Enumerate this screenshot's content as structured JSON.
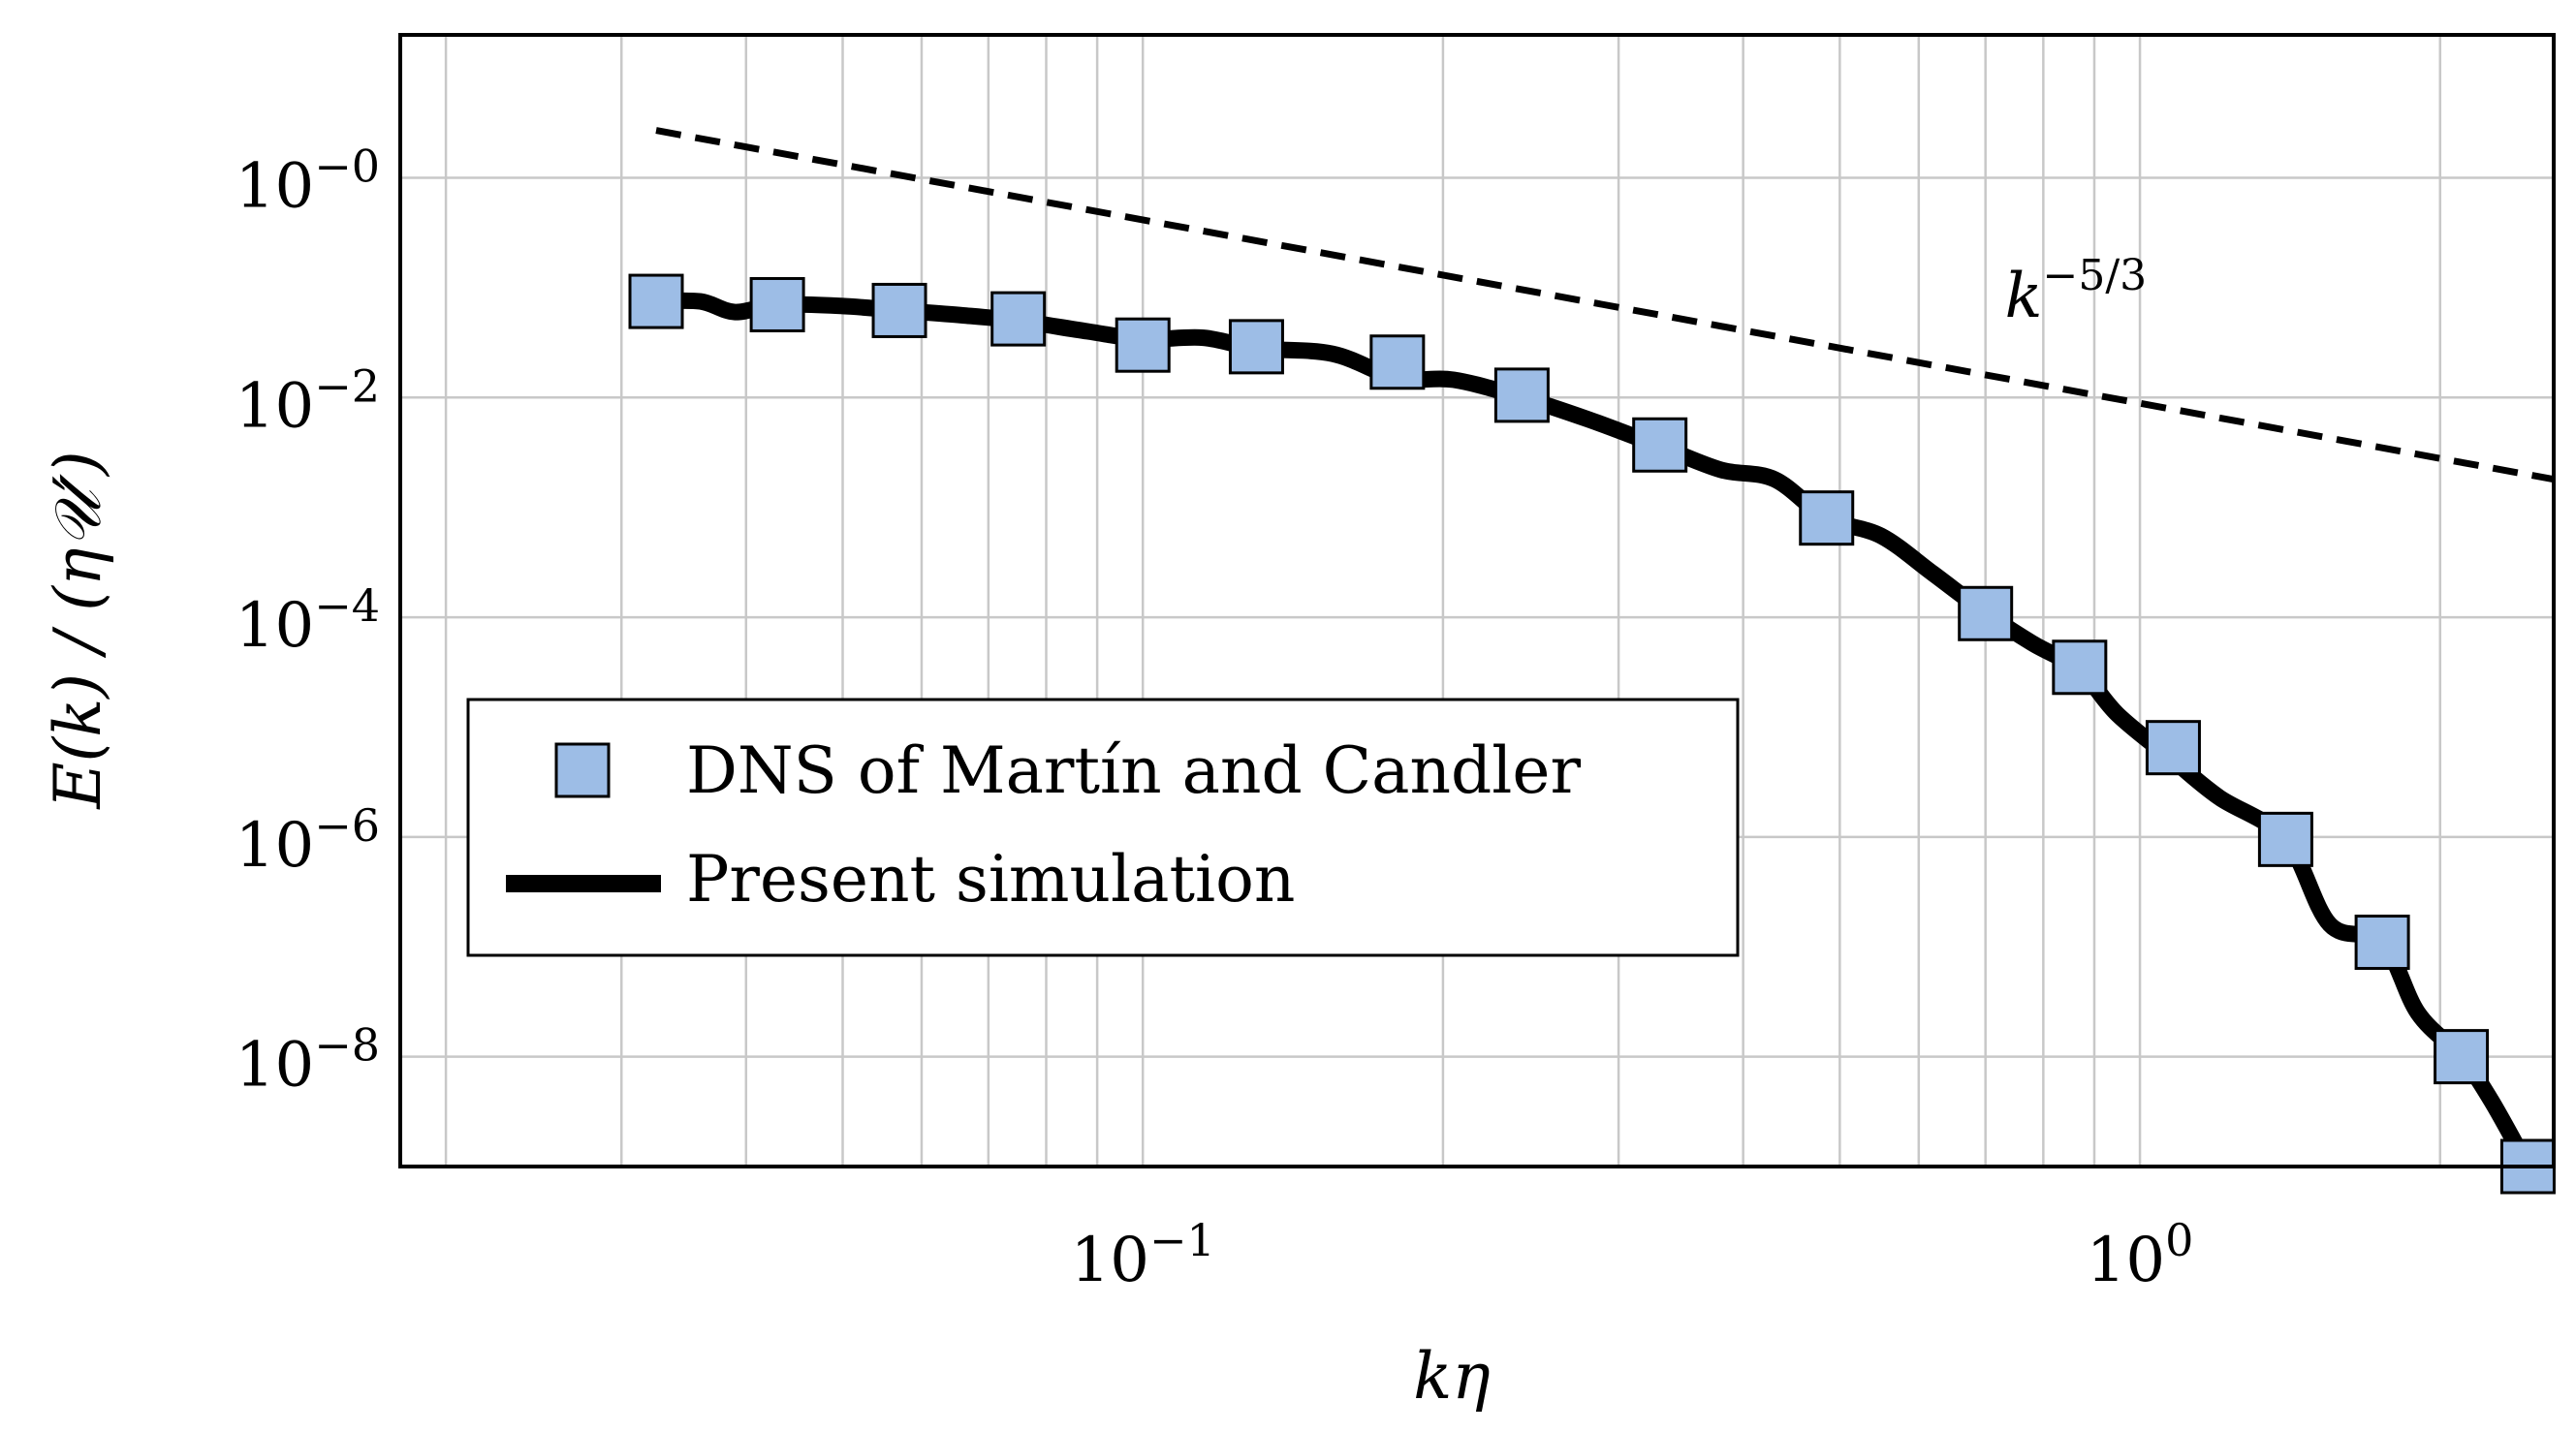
{
  "chart_data": {
    "type": "line",
    "x_scale": "log",
    "y_scale": "log",
    "xlim": [
      0.018,
      2.6
    ],
    "ylim": [
      1e-09,
      20
    ],
    "xlabel": "kη",
    "ylabel": "E(k) / (η𝒰′)",
    "x_ticks": [
      {
        "value": 0.1,
        "base": "10",
        "exp": "−1"
      },
      {
        "value": 1,
        "base": "10",
        "exp": "0"
      }
    ],
    "y_ticks": [
      {
        "value": 1,
        "base": "10",
        "exp": "−0"
      },
      {
        "value": 0.01,
        "base": "10",
        "exp": "−2"
      },
      {
        "value": 0.0001,
        "base": "10",
        "exp": "−4"
      },
      {
        "value": 1e-06,
        "base": "10",
        "exp": "−6"
      },
      {
        "value": 1e-08,
        "base": "10",
        "exp": "−8"
      }
    ],
    "grid": true,
    "series": [
      {
        "name": "DNS of Martín and Candler",
        "kind": "markers",
        "marker": "square",
        "color": "#9dbde6",
        "x": [
          0.0325,
          0.043,
          0.057,
          0.075,
          0.1,
          0.13,
          0.18,
          0.24,
          0.33,
          0.485,
          0.7,
          0.87,
          1.08,
          1.4,
          1.75,
          2.1,
          2.45
        ],
        "y": [
          0.075,
          0.07,
          0.062,
          0.052,
          0.03,
          0.029,
          0.021,
          0.0105,
          0.0037,
          0.0008,
          0.000108,
          3.5e-05,
          6.5e-06,
          9.5e-07,
          1.1e-07,
          1e-08,
          1e-09
        ]
      },
      {
        "name": "Present simulation",
        "kind": "line",
        "color": "#000000",
        "x": [
          0.0325,
          0.036,
          0.039,
          0.043,
          0.05,
          0.057,
          0.066,
          0.075,
          0.088,
          0.1,
          0.115,
          0.13,
          0.155,
          0.18,
          0.205,
          0.24,
          0.28,
          0.33,
          0.38,
          0.43,
          0.485,
          0.55,
          0.62,
          0.7,
          0.78,
          0.87,
          0.95,
          1.08,
          1.2,
          1.4,
          1.55,
          1.75,
          1.9,
          2.1,
          2.25,
          2.45
        ],
        "y": [
          0.075,
          0.075,
          0.06,
          0.07,
          0.068,
          0.062,
          0.056,
          0.05,
          0.04,
          0.034,
          0.035,
          0.028,
          0.025,
          0.015,
          0.0145,
          0.01,
          0.0063,
          0.0036,
          0.0022,
          0.0018,
          0.0008,
          0.00055,
          0.00025,
          0.00011,
          5.8e-05,
          3.3e-05,
          1.3e-05,
          5e-06,
          2.3e-06,
          9.5e-07,
          1.6e-07,
          1.1e-07,
          2.5e-08,
          1e-08,
          4e-09,
          1e-09
        ]
      },
      {
        "name": "k^{-5/3}",
        "kind": "line",
        "style": "dashed",
        "color": "#000000",
        "x": [
          0.0325,
          2.6
        ],
        "y": [
          2.7,
          0.0018
        ]
      }
    ],
    "annotations": [
      {
        "text_base": "k",
        "text_exp": "−5/3",
        "x": 0.7,
        "y": 0.085
      }
    ],
    "legend": {
      "position": "center-left",
      "entries": [
        "DNS of Martín and Candler",
        "Present simulation"
      ]
    }
  }
}
